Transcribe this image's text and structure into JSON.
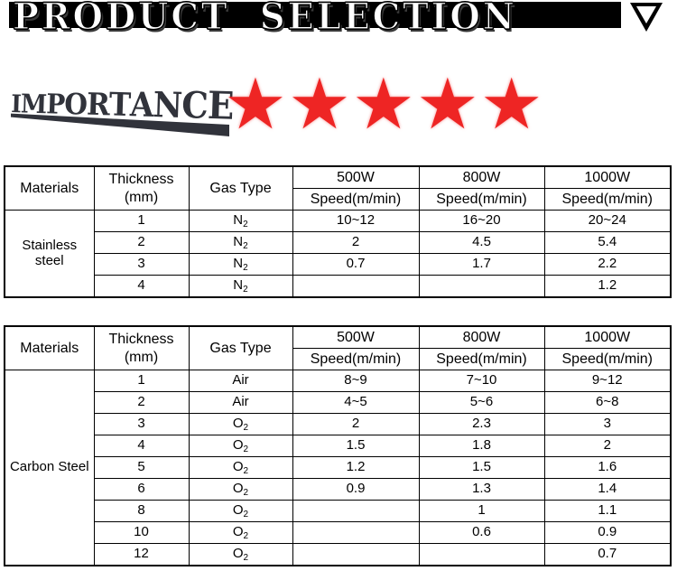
{
  "banner": {
    "title": "PRODUCT SELECTION",
    "background_color": "#000000",
    "text_color": "#ffffff",
    "triangle_icon": "down-triangle"
  },
  "importance": {
    "label": "IMPORTANCE",
    "logo_color": "#31333b",
    "stars": 5,
    "star_glyph": "★",
    "star_color": "#ee2524"
  },
  "tables": [
    {
      "header": {
        "materials": "Materials",
        "thickness": "Thickness (mm)",
        "gas_type": "Gas Type",
        "powers": [
          "500W",
          "800W",
          "1000W"
        ],
        "speed_label": "Speed(m/min)"
      },
      "material": "Stainless steel",
      "rows": [
        {
          "thickness": "1",
          "gas": "N2",
          "speeds": [
            "10~12",
            "16~20",
            "20~24"
          ]
        },
        {
          "thickness": "2",
          "gas": "N2",
          "speeds": [
            "2",
            "4.5",
            "5.4"
          ]
        },
        {
          "thickness": "3",
          "gas": "N2",
          "speeds": [
            "0.7",
            "1.7",
            "2.2"
          ]
        },
        {
          "thickness": "4",
          "gas": "N2",
          "speeds": [
            "",
            "",
            "1.2"
          ]
        }
      ]
    },
    {
      "header": {
        "materials": "Materials",
        "thickness": "Thickness (mm)",
        "gas_type": "Gas Type",
        "powers": [
          "500W",
          "800W",
          "1000W"
        ],
        "speed_label": "Speed(m/min)"
      },
      "material": "Carbon Steel",
      "rows": [
        {
          "thickness": "1",
          "gas": "Air",
          "speeds": [
            "8~9",
            "7~10",
            "9~12"
          ]
        },
        {
          "thickness": "2",
          "gas": "Air",
          "speeds": [
            "4~5",
            "5~6",
            "6~8"
          ]
        },
        {
          "thickness": "3",
          "gas": "O2",
          "speeds": [
            "2",
            "2.3",
            "3"
          ]
        },
        {
          "thickness": "4",
          "gas": "O2",
          "speeds": [
            "1.5",
            "1.8",
            "2"
          ]
        },
        {
          "thickness": "5",
          "gas": "O2",
          "speeds": [
            "1.2",
            "1.5",
            "1.6"
          ]
        },
        {
          "thickness": "6",
          "gas": "O2",
          "speeds": [
            "0.9",
            "1.3",
            "1.4"
          ]
        },
        {
          "thickness": "8",
          "gas": "O2",
          "speeds": [
            "",
            "1",
            "1.1"
          ]
        },
        {
          "thickness": "10",
          "gas": "O2",
          "speeds": [
            "",
            "0.6",
            "0.9"
          ]
        },
        {
          "thickness": "12",
          "gas": "O2",
          "speeds": [
            "",
            "",
            "0.7"
          ]
        }
      ]
    }
  ]
}
